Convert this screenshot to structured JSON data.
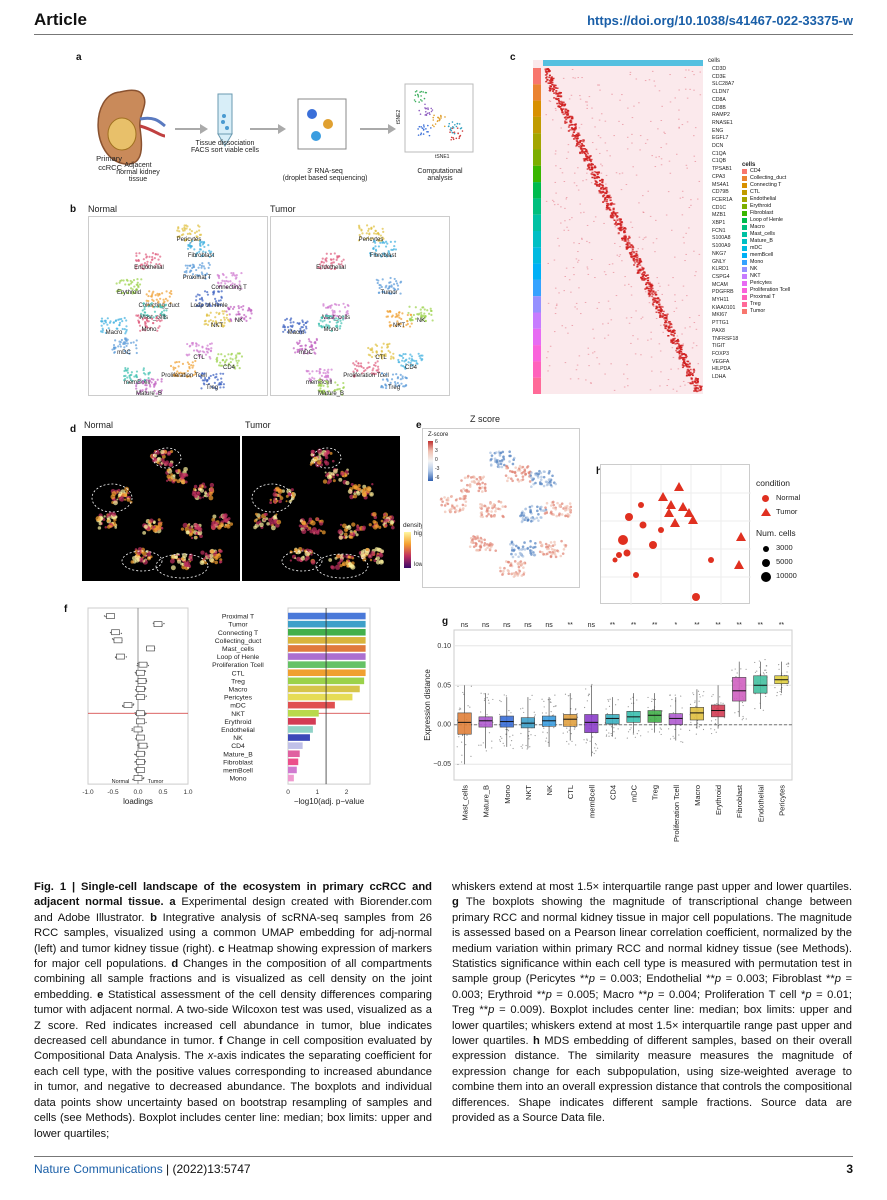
{
  "header": {
    "article": "Article",
    "doi": "https://doi.org/10.1038/s41467-022-33375-w"
  },
  "panel_a": {
    "label": "a",
    "primary": "Primary\nccRCC",
    "adjacent": "Adjacent\nnormal kidney\ntissue",
    "dissociation": "Tissue dissociation\nFACS sort viable cells",
    "rnaseq": "3' RNA-seq\n(droplet based sequencing)",
    "analysis": "Computational\nanalysis",
    "xaxis": "tSNE1",
    "yaxis": "tSNE2"
  },
  "panel_b": {
    "label": "b",
    "normal_title": "Normal",
    "tumor_title": "Tumor",
    "normal_labels": [
      "Pericytes",
      "Fibroblast",
      "Endothelial",
      "Proximal T",
      "Connecting T",
      "Erythroid",
      "Collecting_duct",
      "Loop of Henle",
      "Mast_cells",
      "NK",
      "NKT",
      "Macro",
      "Mono",
      "mDC",
      "CTL",
      "CD4",
      "Proliferation Tcell",
      "Treg",
      "memBcell",
      "Mature_B"
    ],
    "tumor_labels": [
      "Pericytes",
      "Fibroblast",
      "Endothelial",
      "Tumor",
      "Mast_cells",
      "NK",
      "NKT",
      "Macro",
      "Mono",
      "mDC",
      "CTL",
      "CD4",
      "Proliferation Tcell",
      "Treg",
      "memBcell",
      "Mature_B"
    ]
  },
  "panel_c": {
    "label": "c",
    "top_label": "cells",
    "genes": [
      "CD3D",
      "CD3E",
      "SLC28A7",
      "CLDN7",
      "CD8A",
      "CD8B",
      "RAMP2",
      "RNASE1",
      "ENG",
      "EGFL7",
      "DCN",
      "C1QA",
      "C1QB",
      "TPSAB1",
      "CPA3",
      "MS4A1",
      "CD79B",
      "FCER1A",
      "CD1C",
      "MZB1",
      "XBP1",
      "FCN1",
      "S100A8",
      "S100A9",
      "NKG7",
      "GNLY",
      "KLRD1",
      "CSPG4",
      "MCAM",
      "PDGFRB",
      "MYH11",
      "KIAA0101",
      "MKI67",
      "PTTG1",
      "PAX8",
      "TNFRSF18",
      "TIGIT",
      "FOXP3",
      "VEGFA",
      "HILPDA",
      "LDHA"
    ],
    "legend_title": "cells",
    "legend": [
      {
        "name": "CD4",
        "color": "#f8766d"
      },
      {
        "name": "Collecting_duct",
        "color": "#ea8331"
      },
      {
        "name": "Connecting T",
        "color": "#d89000"
      },
      {
        "name": "CTL",
        "color": "#c09b00"
      },
      {
        "name": "Endothelial",
        "color": "#a3a500"
      },
      {
        "name": "Erythroid",
        "color": "#7cae00"
      },
      {
        "name": "Fibroblast",
        "color": "#39b600"
      },
      {
        "name": "Loop of Henle",
        "color": "#00bb4e"
      },
      {
        "name": "Macro",
        "color": "#00bf7d"
      },
      {
        "name": "Mast_cells",
        "color": "#00c1a3"
      },
      {
        "name": "Mature_B",
        "color": "#00bfc4"
      },
      {
        "name": "mDC",
        "color": "#00bae0"
      },
      {
        "name": "memBcell",
        "color": "#00b0f6"
      },
      {
        "name": "Mono",
        "color": "#35a2ff"
      },
      {
        "name": "NK",
        "color": "#9590ff"
      },
      {
        "name": "NKT",
        "color": "#c77cff"
      },
      {
        "name": "Pericytes",
        "color": "#e76bf3"
      },
      {
        "name": "Proliferation Tcell",
        "color": "#fa62db"
      },
      {
        "name": "Proximal T",
        "color": "#ff62bc"
      },
      {
        "name": "Treg",
        "color": "#ff6a98"
      },
      {
        "name": "Tumor",
        "color": "#f8766d"
      }
    ]
  },
  "panel_d": {
    "label": "d",
    "normal_title": "Normal",
    "tumor_title": "Tumor",
    "density": "density",
    "high": "high",
    "low": "low"
  },
  "panel_e": {
    "label": "e",
    "title": "Z score",
    "legend_title": "Z-score",
    "ticks": [
      "6",
      "3",
      "0",
      "-3",
      "-6"
    ]
  },
  "panel_f": {
    "label": "f",
    "cells": [
      "Proximal T",
      "Tumor",
      "Connecting T",
      "Collecting_duct",
      "Mast_cells",
      "Loop of Henle",
      "Proliferation Tcell",
      "CTL",
      "Treg",
      "Macro",
      "Pericytes",
      "mDC",
      "NKT",
      "Erythroid",
      "Endothelial",
      "NK",
      "CD4",
      "Mature_B",
      "Fibroblast",
      "memBcell",
      "Mono"
    ],
    "loadings": [
      -0.55,
      0.4,
      -0.45,
      -0.4,
      0.25,
      -0.35,
      0.1,
      0.05,
      0.08,
      0.05,
      0.05,
      -0.2,
      0.05,
      0.05,
      0.0,
      0.05,
      0.1,
      0.05,
      0.05,
      0.05,
      0.0
    ],
    "neglog10p": [
      2.65,
      2.65,
      2.65,
      2.65,
      2.65,
      2.65,
      2.65,
      2.65,
      2.6,
      2.45,
      2.2,
      1.6,
      1.05,
      0.95,
      0.85,
      0.75,
      0.5,
      0.4,
      0.35,
      0.3,
      0.2
    ],
    "bar_colors": [
      "#4a79d9",
      "#3ea0c9",
      "#43b04b",
      "#d9b43c",
      "#e07a3c",
      "#ab6fd0",
      "#66c266",
      "#f0a030",
      "#9bd24a",
      "#d6c44a",
      "#e6dc55",
      "#e05050",
      "#b9d94c",
      "#d33c55",
      "#8ed2c6",
      "#3b48b8",
      "#c0c0e8",
      "#e060a0",
      "#ec4f8b",
      "#d07ad0",
      "#f09ad0"
    ],
    "xlabel_left": "loadings",
    "xlabel_right": "−log10(adj. p−value",
    "xticks_left": [
      "-1.0",
      "-0.5",
      "0.0",
      "0.5",
      "1.0"
    ],
    "xticks_right": [
      "0",
      "1",
      "2"
    ],
    "normal_tag": "Normal",
    "tumor_tag": "Tumor"
  },
  "panel_g": {
    "label": "g",
    "ylabel": "Expression distance",
    "yticks": [
      "0.10",
      "0.05",
      "0.00",
      "−0.05"
    ],
    "categories": [
      "Mast_cells",
      "Mature_B",
      "Mono",
      "NKT",
      "NK",
      "CTL",
      "memBcell",
      "CD4",
      "mDC",
      "Treg",
      "Proliferation Tcell",
      "Macro",
      "Erythroid",
      "Fibroblast",
      "Endothelial",
      "Pericytes"
    ],
    "significance": [
      "ns",
      "ns",
      "ns",
      "ns",
      "ns",
      "**",
      "ns",
      "**",
      "**",
      "**",
      "*",
      "**",
      "**",
      "**",
      "**",
      "**"
    ],
    "medians": [
      0.003,
      0.005,
      0.004,
      0.002,
      0.005,
      0.007,
      0.003,
      0.008,
      0.01,
      0.012,
      0.008,
      0.015,
      0.018,
      0.043,
      0.05,
      0.057
    ],
    "q1": [
      -0.012,
      -0.003,
      -0.003,
      -0.004,
      -0.002,
      -0.002,
      -0.01,
      0.001,
      0.003,
      0.003,
      0.0,
      0.006,
      0.01,
      0.03,
      0.04,
      0.052
    ],
    "q3": [
      0.015,
      0.01,
      0.011,
      0.009,
      0.011,
      0.013,
      0.013,
      0.013,
      0.017,
      0.018,
      0.014,
      0.022,
      0.025,
      0.06,
      0.062,
      0.062
    ],
    "lo": [
      -0.05,
      -0.03,
      -0.028,
      -0.03,
      -0.028,
      -0.02,
      -0.04,
      -0.015,
      -0.01,
      -0.01,
      -0.02,
      -0.005,
      -0.005,
      0.01,
      0.02,
      0.04
    ],
    "hi": [
      0.05,
      0.04,
      0.035,
      0.035,
      0.035,
      0.04,
      0.05,
      0.035,
      0.04,
      0.04,
      0.035,
      0.045,
      0.05,
      0.08,
      0.08,
      0.08
    ],
    "colors": [
      "#e0803a",
      "#b05bd0",
      "#3a6fd9",
      "#3ea0c9",
      "#3a9de0",
      "#e0a040",
      "#8b3ec9",
      "#3ab0c0",
      "#3ac0b0",
      "#43b04b",
      "#b05bd0",
      "#e0c040",
      "#d33c55",
      "#d060c0",
      "#43c0a0",
      "#e0d040"
    ]
  },
  "panel_h": {
    "label": "h",
    "legend_condition": "condition",
    "normal": "Normal",
    "tumor": "Tumor",
    "legend_size": "Num. cells",
    "sizes": [
      "3000",
      "5000",
      "10000"
    ]
  },
  "caption": {
    "col1": "<b>Fig. 1 | Single-cell landscape of the ecosystem in primary ccRCC and adjacent normal tissue. a</b> Experimental design created with Biorender.com and Adobe Illustrator. <b>b</b> Integrative analysis of scRNA-seq samples from 26 RCC samples, visualized using a common UMAP embedding for adj-normal (left) and tumor kidney tissue (right). <b>c</b> Heatmap showing expression of markers for major cell populations. <b>d</b> Changes in the composition of all compartments combining all sample fractions and is visualized as cell density on the joint embedding. <b>e</b> Statistical assessment of the cell density differences comparing tumor with adjacent normal. A two-side Wilcoxon test was used, visualized as a Z score. Red indicates increased cell abundance in tumor, blue indicates decreased cell abundance in tumor. <b>f</b> Change in cell composition evaluated by Compositional Data Analysis. The <i>x</i>-axis indicates the separating coefficient for each cell type, with the positive values corresponding to increased abundance in tumor, and negative to decreased abundance. The boxplots and individual data points show uncertainty based on bootstrap resampling of samples and cells (see Methods). Boxplot includes center line: median; box limits: upper and lower quartiles;",
    "col2": "whiskers extend at most 1.5× interquartile range past upper and lower quartiles. <b>g</b> The boxplots showing the magnitude of transcriptional change between primary RCC and normal kidney tissue in major cell populations. The magnitude is assessed based on a Pearson linear correlation coefficient, normalized by the medium variation within primary RCC and normal kidney tissue (see Methods). Statistics significance within each cell type is measured with permutation test in sample group (Pericytes **<i>p</i> = 0.003; Endothelial **<i>p</i> = 0.003; Fibroblast **<i>p</i> = 0.003; Erythroid **<i>p</i> = 0.005; Macro **<i>p</i> = 0.004; Proliferation T cell *<i>p</i> = 0.01; Treg **<i>p</i> = 0.009). Boxplot includes center line: median; box limits: upper and lower quartiles; whiskers extend at most 1.5× interquartile range past upper and lower quartiles. <b>h</b> MDS embedding of different samples, based on their overall expression distance. The similarity measure measures the magnitude of expression change for each subpopulation, using size-weighted average to combine them into an overall expression distance that controls the compositional differences. Shape indicates different sample fractions. Source data are provided as a Source Data file."
  },
  "footer": {
    "journal": "Nature Communications",
    "issue": "(2022)13:5747",
    "page": "3"
  }
}
